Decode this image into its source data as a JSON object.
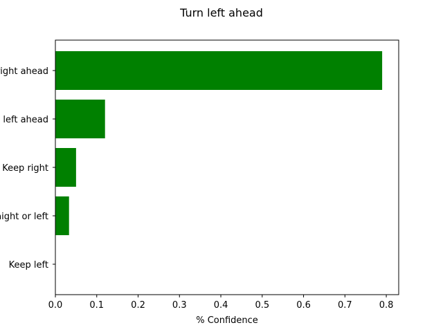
{
  "chart_data": {
    "type": "bar",
    "orientation": "horizontal",
    "title": "Turn left ahead",
    "xlabel": "% Confidence",
    "ylabel": "",
    "categories": [
      "Turn right ahead",
      "Turn left ahead",
      "Keep right",
      "Go straight or left",
      "Keep left"
    ],
    "values": [
      0.79,
      0.12,
      0.05,
      0.033,
      0.0
    ],
    "xlim": [
      0.0,
      0.83
    ],
    "xticks": [
      0.0,
      0.1,
      0.2,
      0.3,
      0.4,
      0.5,
      0.6,
      0.7,
      0.8
    ],
    "xtick_labels": [
      "0.0",
      "0.1",
      "0.2",
      "0.3",
      "0.4",
      "0.5",
      "0.6",
      "0.7",
      "0.8"
    ],
    "bar_color": "#008000",
    "grid": false,
    "legend": "none"
  }
}
